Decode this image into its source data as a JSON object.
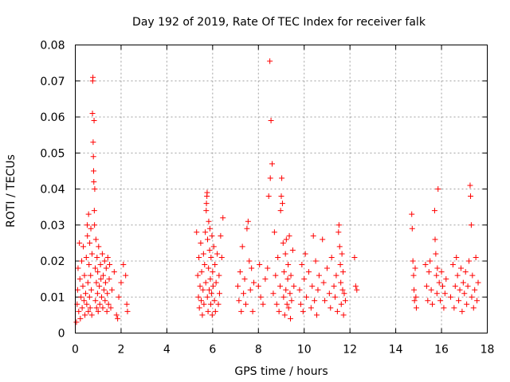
{
  "chart_data": {
    "type": "scatter",
    "title": "Day 192 of 2019, Rate Of TEC Index for receiver falk",
    "xlabel": "GPS time / hours",
    "ylabel": "ROTI / TECUs",
    "xlim": [
      0,
      18
    ],
    "ylim": [
      0,
      0.08
    ],
    "xticks": [
      0,
      2,
      4,
      6,
      8,
      10,
      12,
      14,
      16,
      18
    ],
    "yticks": [
      0,
      0.01,
      0.02,
      0.03,
      0.04,
      0.05,
      0.06,
      0.07,
      0.08
    ],
    "xtick_labels": [
      "0",
      "2",
      "4",
      "6",
      "8",
      "10",
      "12",
      "14",
      "16",
      "18"
    ],
    "ytick_labels": [
      "0",
      "0.01",
      "0.02",
      "0.03",
      "0.04",
      "0.05",
      "0.06",
      "0.07",
      "0.08"
    ],
    "grid": true,
    "marker": "+",
    "color": "#ff0000",
    "series": [
      {
        "name": "ROTI",
        "points": [
          [
            0.05,
            0.003
          ],
          [
            0.08,
            0.008
          ],
          [
            0.1,
            0.012
          ],
          [
            0.12,
            0.018
          ],
          [
            0.15,
            0.006
          ],
          [
            0.18,
            0.025
          ],
          [
            0.2,
            0.015
          ],
          [
            0.22,
            0.004
          ],
          [
            0.25,
            0.01
          ],
          [
            0.28,
            0.02
          ],
          [
            0.3,
            0.007
          ],
          [
            0.33,
            0.013
          ],
          [
            0.35,
            0.024
          ],
          [
            0.38,
            0.009
          ],
          [
            0.4,
            0.016
          ],
          [
            0.42,
            0.005
          ],
          [
            0.45,
            0.011
          ],
          [
            0.48,
            0.021
          ],
          [
            0.5,
            0.008
          ],
          [
            0.52,
            0.03
          ],
          [
            0.53,
            0.027
          ],
          [
            0.55,
            0.014
          ],
          [
            0.57,
            0.006
          ],
          [
            0.58,
            0.033
          ],
          [
            0.6,
            0.019
          ],
          [
            0.62,
            0.01
          ],
          [
            0.63,
            0.025
          ],
          [
            0.65,
            0.007
          ],
          [
            0.67,
            0.016
          ],
          [
            0.68,
            0.029
          ],
          [
            0.7,
            0.012
          ],
          [
            0.72,
            0.005
          ],
          [
            0.73,
            0.022
          ],
          [
            0.75,
            0.061
          ],
          [
            0.76,
            0.07
          ],
          [
            0.77,
            0.071
          ],
          [
            0.78,
            0.053
          ],
          [
            0.79,
            0.049
          ],
          [
            0.8,
            0.045
          ],
          [
            0.81,
            0.042
          ],
          [
            0.82,
            0.059
          ],
          [
            0.83,
            0.034
          ],
          [
            0.84,
            0.03
          ],
          [
            0.85,
            0.04
          ],
          [
            0.87,
            0.018
          ],
          [
            0.88,
            0.009
          ],
          [
            0.9,
            0.026
          ],
          [
            0.92,
            0.014
          ],
          [
            0.93,
            0.007
          ],
          [
            0.95,
            0.021
          ],
          [
            0.97,
            0.011
          ],
          [
            0.98,
            0.017
          ],
          [
            1.0,
            0.006
          ],
          [
            1.02,
            0.024
          ],
          [
            1.05,
            0.013
          ],
          [
            1.07,
            0.008
          ],
          [
            1.1,
            0.019
          ],
          [
            1.12,
            0.015
          ],
          [
            1.15,
            0.01
          ],
          [
            1.18,
            0.022
          ],
          [
            1.2,
            0.007
          ],
          [
            1.22,
            0.016
          ],
          [
            1.25,
            0.012
          ],
          [
            1.28,
            0.02
          ],
          [
            1.3,
            0.009
          ],
          [
            1.32,
            0.014
          ],
          [
            1.35,
            0.018
          ],
          [
            1.38,
            0.006
          ],
          [
            1.4,
            0.011
          ],
          [
            1.42,
            0.021
          ],
          [
            1.45,
            0.008
          ],
          [
            1.48,
            0.015
          ],
          [
            1.5,
            0.019
          ],
          [
            1.55,
            0.007
          ],
          [
            1.6,
            0.012
          ],
          [
            1.7,
            0.017
          ],
          [
            1.8,
            0.005
          ],
          [
            1.85,
            0.004
          ],
          [
            1.9,
            0.01
          ],
          [
            2.0,
            0.014
          ],
          [
            2.1,
            0.019
          ],
          [
            2.2,
            0.016
          ],
          [
            2.25,
            0.008
          ],
          [
            2.28,
            0.006
          ],
          [
            5.3,
            0.028
          ],
          [
            5.35,
            0.016
          ],
          [
            5.38,
            0.01
          ],
          [
            5.4,
            0.021
          ],
          [
            5.42,
            0.007
          ],
          [
            5.45,
            0.013
          ],
          [
            5.48,
            0.025
          ],
          [
            5.5,
            0.009
          ],
          [
            5.52,
            0.017
          ],
          [
            5.55,
            0.005
          ],
          [
            5.58,
            0.012
          ],
          [
            5.6,
            0.022
          ],
          [
            5.62,
            0.008
          ],
          [
            5.65,
            0.019
          ],
          [
            5.68,
            0.028
          ],
          [
            5.7,
            0.014
          ],
          [
            5.72,
            0.034
          ],
          [
            5.73,
            0.036
          ],
          [
            5.75,
            0.038
          ],
          [
            5.76,
            0.039
          ],
          [
            5.77,
            0.01
          ],
          [
            5.78,
            0.026
          ],
          [
            5.8,
            0.006
          ],
          [
            5.82,
            0.018
          ],
          [
            5.83,
            0.031
          ],
          [
            5.85,
            0.012
          ],
          [
            5.87,
            0.023
          ],
          [
            5.88,
            0.029
          ],
          [
            5.9,
            0.015
          ],
          [
            5.92,
            0.008
          ],
          [
            5.93,
            0.021
          ],
          [
            5.95,
            0.011
          ],
          [
            5.97,
            0.027
          ],
          [
            5.98,
            0.005
          ],
          [
            6.0,
            0.017
          ],
          [
            6.02,
            0.013
          ],
          [
            6.05,
            0.024
          ],
          [
            6.08,
            0.009
          ],
          [
            6.1,
            0.019
          ],
          [
            6.12,
            0.006
          ],
          [
            6.15,
            0.014
          ],
          [
            6.2,
            0.022
          ],
          [
            6.25,
            0.008
          ],
          [
            6.28,
            0.016
          ],
          [
            6.3,
            0.011
          ],
          [
            6.35,
            0.027
          ],
          [
            6.4,
            0.021
          ],
          [
            6.45,
            0.032
          ],
          [
            7.1,
            0.013
          ],
          [
            7.15,
            0.009
          ],
          [
            7.2,
            0.017
          ],
          [
            7.25,
            0.006
          ],
          [
            7.3,
            0.024
          ],
          [
            7.35,
            0.011
          ],
          [
            7.4,
            0.015
          ],
          [
            7.45,
            0.008
          ],
          [
            7.5,
            0.029
          ],
          [
            7.55,
            0.031
          ],
          [
            7.6,
            0.02
          ],
          [
            7.65,
            0.012
          ],
          [
            7.7,
            0.018
          ],
          [
            7.75,
            0.006
          ],
          [
            7.8,
            0.014
          ],
          [
            8.0,
            0.013
          ],
          [
            8.05,
            0.019
          ],
          [
            8.1,
            0.01
          ],
          [
            8.2,
            0.008
          ],
          [
            8.3,
            0.015
          ],
          [
            8.4,
            0.018
          ],
          [
            8.45,
            0.038
          ],
          [
            8.5,
            0.0755
          ],
          [
            8.52,
            0.043
          ],
          [
            8.55,
            0.059
          ],
          [
            8.6,
            0.047
          ],
          [
            8.65,
            0.011
          ],
          [
            8.7,
            0.028
          ],
          [
            8.75,
            0.016
          ],
          [
            8.8,
            0.008
          ],
          [
            8.85,
            0.021
          ],
          [
            8.9,
            0.006
          ],
          [
            8.95,
            0.013
          ],
          [
            8.97,
            0.034
          ],
          [
            9.0,
            0.038
          ],
          [
            9.02,
            0.043
          ],
          [
            9.05,
            0.036
          ],
          [
            9.08,
            0.025
          ],
          [
            9.1,
            0.01
          ],
          [
            9.12,
            0.017
          ],
          [
            9.15,
            0.005
          ],
          [
            9.18,
            0.022
          ],
          [
            9.2,
            0.012
          ],
          [
            9.22,
            0.026
          ],
          [
            9.25,
            0.008
          ],
          [
            9.28,
            0.015
          ],
          [
            9.3,
            0.019
          ],
          [
            9.32,
            0.007
          ],
          [
            9.35,
            0.027
          ],
          [
            9.38,
            0.011
          ],
          [
            9.4,
            0.004
          ],
          [
            9.42,
            0.016
          ],
          [
            9.45,
            0.009
          ],
          [
            9.5,
            0.023
          ],
          [
            9.55,
            0.013
          ],
          [
            9.8,
            0.012
          ],
          [
            9.85,
            0.008
          ],
          [
            9.9,
            0.019
          ],
          [
            9.95,
            0.006
          ],
          [
            10.0,
            0.015
          ],
          [
            10.05,
            0.022
          ],
          [
            10.1,
            0.01
          ],
          [
            10.2,
            0.017
          ],
          [
            10.3,
            0.007
          ],
          [
            10.35,
            0.013
          ],
          [
            10.4,
            0.027
          ],
          [
            10.45,
            0.009
          ],
          [
            10.5,
            0.02
          ],
          [
            10.55,
            0.005
          ],
          [
            10.6,
            0.012
          ],
          [
            10.65,
            0.016
          ],
          [
            10.8,
            0.026
          ],
          [
            10.85,
            0.014
          ],
          [
            10.9,
            0.009
          ],
          [
            11.0,
            0.018
          ],
          [
            11.1,
            0.011
          ],
          [
            11.15,
            0.007
          ],
          [
            11.2,
            0.021
          ],
          [
            11.3,
            0.013
          ],
          [
            11.35,
            0.01
          ],
          [
            11.4,
            0.016
          ],
          [
            11.45,
            0.006
          ],
          [
            11.5,
            0.028
          ],
          [
            11.52,
            0.03
          ],
          [
            11.55,
            0.024
          ],
          [
            11.58,
            0.019
          ],
          [
            11.6,
            0.014
          ],
          [
            11.62,
            0.008
          ],
          [
            11.65,
            0.022
          ],
          [
            11.68,
            0.012
          ],
          [
            11.7,
            0.017
          ],
          [
            11.72,
            0.005
          ],
          [
            11.75,
            0.011
          ],
          [
            11.8,
            0.009
          ],
          [
            12.2,
            0.021
          ],
          [
            12.25,
            0.013
          ],
          [
            12.3,
            0.012
          ],
          [
            14.7,
            0.033
          ],
          [
            14.72,
            0.029
          ],
          [
            14.75,
            0.02
          ],
          [
            14.78,
            0.016
          ],
          [
            14.8,
            0.012
          ],
          [
            14.82,
            0.009
          ],
          [
            14.85,
            0.018
          ],
          [
            14.88,
            0.01
          ],
          [
            14.9,
            0.007
          ],
          [
            15.3,
            0.019
          ],
          [
            15.35,
            0.013
          ],
          [
            15.4,
            0.009
          ],
          [
            15.45,
            0.017
          ],
          [
            15.5,
            0.02
          ],
          [
            15.55,
            0.012
          ],
          [
            15.6,
            0.008
          ],
          [
            15.7,
            0.034
          ],
          [
            15.72,
            0.026
          ],
          [
            15.75,
            0.022
          ],
          [
            15.78,
            0.016
          ],
          [
            15.8,
            0.011
          ],
          [
            15.82,
            0.018
          ],
          [
            15.85,
            0.04
          ],
          [
            15.9,
            0.014
          ],
          [
            15.95,
            0.009
          ],
          [
            16.0,
            0.017
          ],
          [
            16.05,
            0.013
          ],
          [
            16.1,
            0.007
          ],
          [
            16.15,
            0.011
          ],
          [
            16.2,
            0.015
          ],
          [
            16.4,
            0.01
          ],
          [
            16.5,
            0.019
          ],
          [
            16.55,
            0.007
          ],
          [
            16.6,
            0.013
          ],
          [
            16.65,
            0.021
          ],
          [
            16.7,
            0.016
          ],
          [
            16.75,
            0.009
          ],
          [
            16.8,
            0.012
          ],
          [
            16.85,
            0.018
          ],
          [
            16.9,
            0.006
          ],
          [
            16.95,
            0.014
          ],
          [
            17.0,
            0.011
          ],
          [
            17.05,
            0.017
          ],
          [
            17.1,
            0.008
          ],
          [
            17.15,
            0.013
          ],
          [
            17.2,
            0.02
          ],
          [
            17.25,
            0.041
          ],
          [
            17.27,
            0.038
          ],
          [
            17.3,
            0.03
          ],
          [
            17.32,
            0.01
          ],
          [
            17.35,
            0.016
          ],
          [
            17.4,
            0.007
          ],
          [
            17.45,
            0.012
          ],
          [
            17.5,
            0.021
          ],
          [
            17.55,
            0.009
          ],
          [
            17.6,
            0.014
          ]
        ]
      }
    ]
  }
}
